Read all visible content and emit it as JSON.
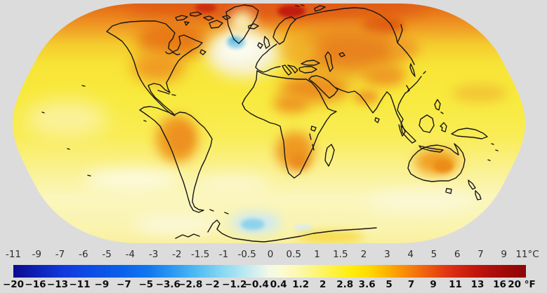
{
  "figure": {
    "kind": "global-surface-temperature-anomaly-map",
    "background_color": "#dcdcdc"
  },
  "scalebar": {
    "celsius_labels": [
      "-11",
      "-9",
      "-7",
      "-6",
      "-5",
      "-4",
      "-3",
      "-2",
      "-1.5",
      "-1",
      "-0.5",
      "0",
      "0.5",
      "1",
      "1.5",
      "2",
      "3",
      "4",
      "5",
      "6",
      "7",
      "9",
      "11°C"
    ],
    "fahrenheit_labels": [
      "−20",
      "−16",
      "−13",
      "−11",
      "−9",
      "−7",
      "−5",
      "−3.6",
      "−2.8",
      "−2",
      "−1.2",
      "−0.4",
      "0.4",
      "1.2",
      "2",
      "2.8",
      "3.6",
      "5",
      "7",
      "9",
      "11",
      "13",
      "16",
      "20 °F"
    ],
    "gradient_stops": [
      {
        "pos": 0.0,
        "color": "#0b0b8f"
      },
      {
        "pos": 0.05,
        "color": "#0f22b8"
      },
      {
        "pos": 0.1,
        "color": "#123add"
      },
      {
        "pos": 0.155,
        "color": "#0c4ee4"
      },
      {
        "pos": 0.21,
        "color": "#0a60ea"
      },
      {
        "pos": 0.265,
        "color": "#1178ef"
      },
      {
        "pos": 0.315,
        "color": "#2f9cf2"
      },
      {
        "pos": 0.365,
        "color": "#58c0f2"
      },
      {
        "pos": 0.41,
        "color": "#8ad9f3"
      },
      {
        "pos": 0.45,
        "color": "#b8e9f1"
      },
      {
        "pos": 0.478,
        "color": "#dbf1ec"
      },
      {
        "pos": 0.5,
        "color": "#f4f9e6"
      },
      {
        "pos": 0.525,
        "color": "#fcfad2"
      },
      {
        "pos": 0.565,
        "color": "#fcf7a4"
      },
      {
        "pos": 0.61,
        "color": "#fdf457"
      },
      {
        "pos": 0.655,
        "color": "#feee12"
      },
      {
        "pos": 0.69,
        "color": "#fedd00"
      },
      {
        "pos": 0.72,
        "color": "#fdbd00"
      },
      {
        "pos": 0.75,
        "color": "#fa9b05"
      },
      {
        "pos": 0.78,
        "color": "#f57a0b"
      },
      {
        "pos": 0.81,
        "color": "#ee5a0f"
      },
      {
        "pos": 0.84,
        "color": "#e23b11"
      },
      {
        "pos": 0.87,
        "color": "#d32511"
      },
      {
        "pos": 0.9,
        "color": "#c1170e"
      },
      {
        "pos": 0.94,
        "color": "#aa0d0b"
      },
      {
        "pos": 1.0,
        "color": "#8c0505"
      }
    ]
  },
  "chart_data": {
    "type": "heatmap",
    "title": "",
    "projection": "robinson-like world map",
    "legend": {
      "celsius_ticks": [
        -11,
        -9,
        -7,
        -6,
        -5,
        -4,
        -3,
        -2,
        -1.5,
        -1,
        -0.5,
        0,
        0.5,
        1,
        1.5,
        2,
        3,
        4,
        5,
        6,
        7,
        9,
        11
      ],
      "celsius_unit": "°C",
      "fahrenheit_ticks": [
        -20,
        -16,
        -13,
        -11,
        -9,
        -7,
        -5,
        -3.6,
        -2.8,
        -2,
        -1.2,
        -0.4,
        0.4,
        1.2,
        2,
        2.8,
        3.6,
        5,
        7,
        9,
        11,
        13,
        16,
        20
      ],
      "fahrenheit_unit": "°F",
      "position": "bottom-horizontal"
    },
    "anomaly_estimates_c": [
      {
        "region": "Arctic band (top of map)",
        "value": 3
      },
      {
        "region": "Arctic hot spot (north of Eurasia)",
        "value": 5
      },
      {
        "region": "Canada / Hudson Bay area",
        "value": 2.5
      },
      {
        "region": "Central Siberia",
        "value": 3
      },
      {
        "region": "North Atlantic patch south of Greenland",
        "value": -0.5
      },
      {
        "region": "Mid-latitude oceans",
        "value": 1
      },
      {
        "region": "Continental interiors (Africa, Asia, Americas, Australia)",
        "value": 1.8
      },
      {
        "region": "Southern oceans",
        "value": 0.4
      },
      {
        "region": "Antarctic Peninsula patch",
        "value": -0.7
      },
      {
        "region": "Antarctica coast",
        "value": 0.5
      }
    ]
  }
}
